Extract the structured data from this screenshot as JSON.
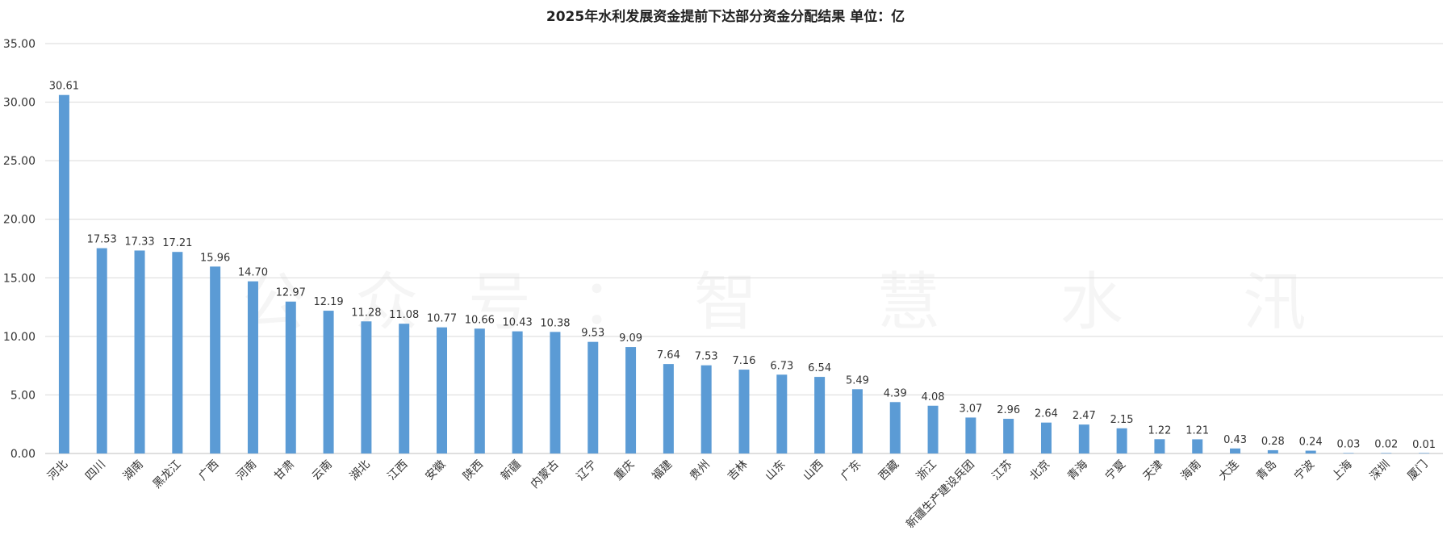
{
  "watermark": "公众号：智 慧 水 汛",
  "chart_data": {
    "type": "bar",
    "title": "2025年水利发展资金提前下达部分资金分配结果 单位：亿",
    "xlabel": "",
    "ylabel": "",
    "ylim": [
      0,
      35
    ],
    "yticks": [
      "0.00",
      "5.00",
      "10.00",
      "15.00",
      "20.00",
      "25.00",
      "30.00",
      "35.00"
    ],
    "grid": true,
    "legend": "none",
    "bar_color": "#5B9BD5",
    "categories": [
      "河北",
      "四川",
      "湖南",
      "黑龙江",
      "广西",
      "河南",
      "甘肃",
      "云南",
      "湖北",
      "江西",
      "安徽",
      "陕西",
      "新疆",
      "内蒙古",
      "辽宁",
      "重庆",
      "福建",
      "贵州",
      "吉林",
      "山东",
      "山西",
      "广东",
      "西藏",
      "浙江",
      "新疆生产建设兵团",
      "江苏",
      "北京",
      "青海",
      "宁夏",
      "天津",
      "海南",
      "大连",
      "青岛",
      "宁波",
      "上海",
      "深圳",
      "厦门"
    ],
    "values": [
      30.61,
      17.53,
      17.33,
      17.21,
      15.96,
      14.7,
      12.97,
      12.19,
      11.28,
      11.08,
      10.77,
      10.66,
      10.43,
      10.38,
      9.53,
      9.09,
      7.64,
      7.53,
      7.16,
      6.73,
      6.54,
      5.49,
      4.39,
      4.08,
      3.07,
      2.96,
      2.64,
      2.47,
      2.15,
      1.22,
      1.21,
      0.43,
      0.28,
      0.24,
      0.03,
      0.02,
      0.01
    ],
    "data_labels": [
      "30.61",
      "17.53",
      "17.33",
      "17.21",
      "15.96",
      "14.70",
      "12.97",
      "12.19",
      "11.28",
      "11.08",
      "10.77",
      "10.66",
      "10.43",
      "10.38",
      "9.53",
      "9.09",
      "7.64",
      "7.53",
      "7.16",
      "6.73",
      "6.54",
      "5.49",
      "4.39",
      "4.08",
      "3.07",
      "2.96",
      "2.64",
      "2.47",
      "2.15",
      "1.22",
      "1.21",
      "0.43",
      "0.28",
      "0.24",
      "0.03",
      "0.02",
      "0.01"
    ]
  }
}
